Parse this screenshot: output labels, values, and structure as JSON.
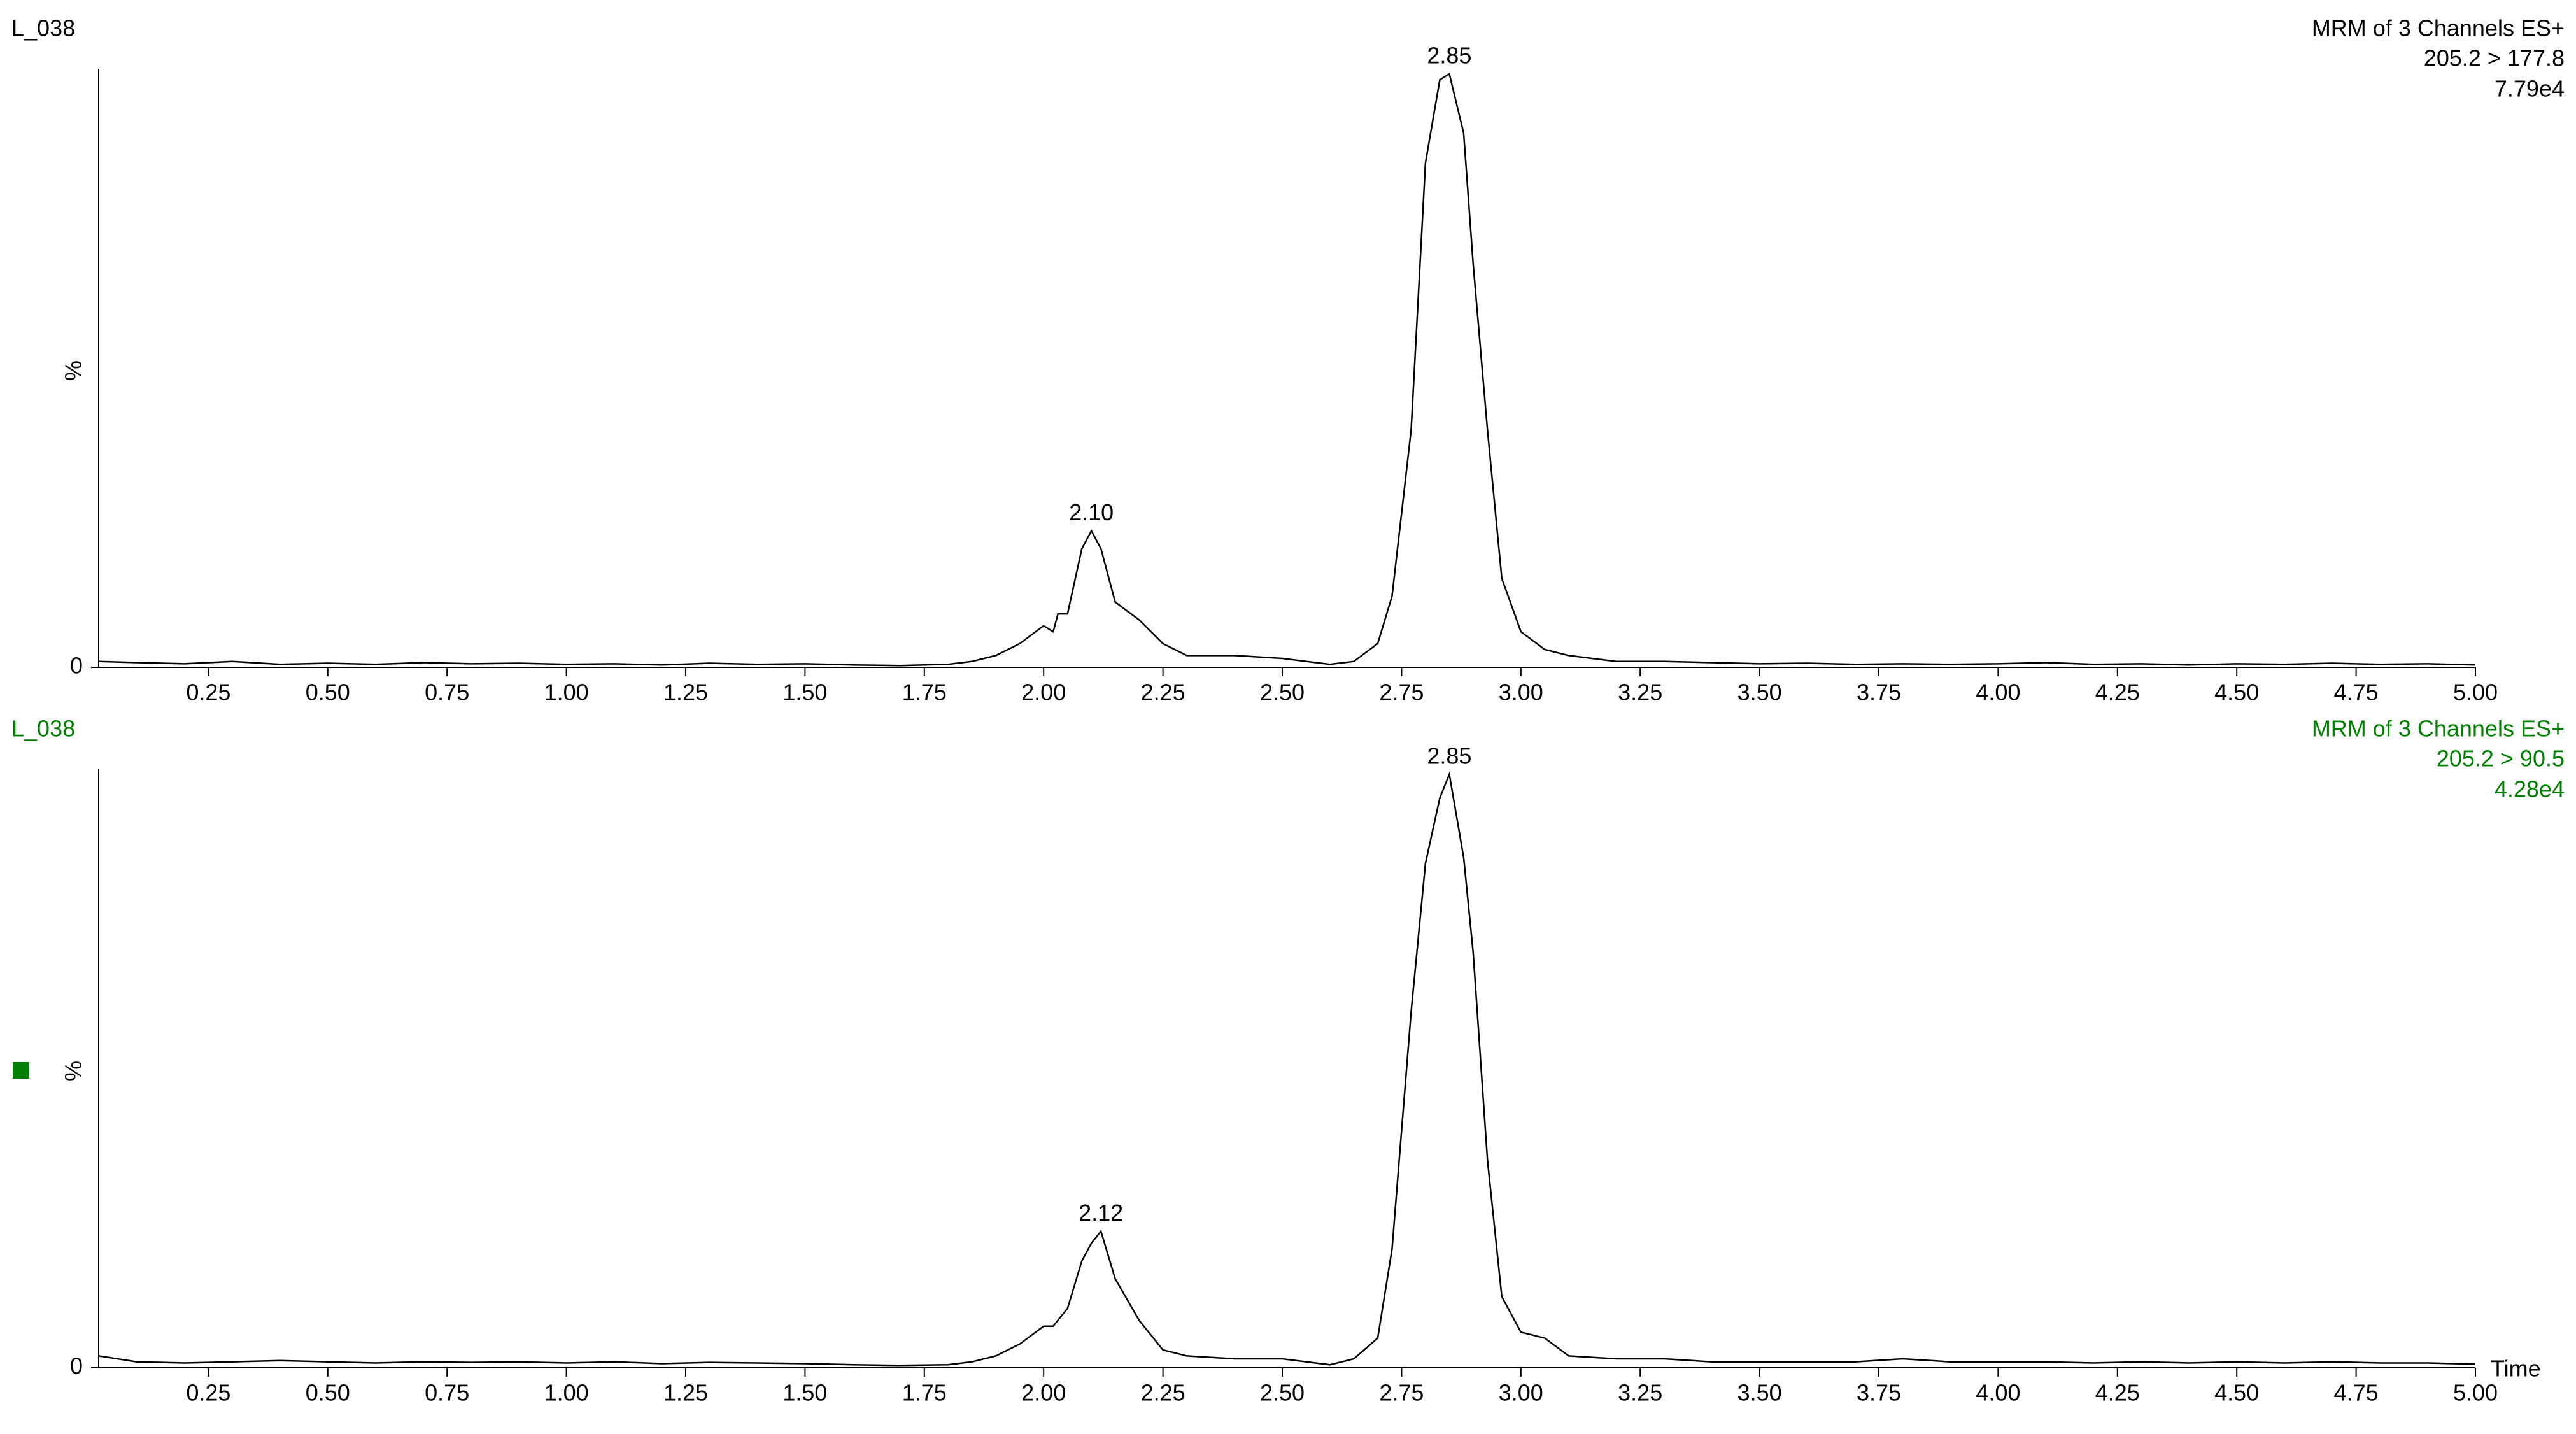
{
  "chart_data": [
    {
      "type": "line",
      "sample": "L_038",
      "title": "MRM of 3 Channels ES+",
      "subtitle": "205.2 > 177.8",
      "intensity": "7.79e4",
      "ylabel": "%",
      "text_color": "#000000",
      "line_color": "#000000",
      "xlim": [
        0.02,
        5.0
      ],
      "ylim": [
        0,
        100
      ],
      "yticks": [
        0
      ],
      "xticks": [
        0.25,
        {
          "value": 0.5,
          "label": "0.50"
        },
        0.75,
        {
          "value": 1,
          "label": "1.00"
        },
        1.25,
        {
          "value": 1.5,
          "label": "1.50"
        },
        1.75,
        {
          "value": 2,
          "label": "2.00"
        },
        2.25,
        {
          "value": 2.5,
          "label": "2.50"
        },
        2.75,
        {
          "value": 3,
          "label": "3.00"
        },
        3.25,
        {
          "value": 3.5,
          "label": "3.50"
        },
        3.75,
        {
          "value": 4,
          "label": "4.00"
        },
        4.25,
        {
          "value": 4.5,
          "label": "4.50"
        },
        4.75,
        {
          "value": 5,
          "label": "5.00"
        }
      ],
      "x": [
        0.02,
        0.1,
        0.2,
        0.3,
        0.4,
        0.5,
        0.6,
        0.7,
        0.8,
        0.9,
        1.0,
        1.1,
        1.2,
        1.3,
        1.4,
        1.5,
        1.6,
        1.7,
        1.8,
        1.85,
        1.9,
        1.95,
        2.0,
        2.02,
        2.03,
        2.05,
        2.08,
        2.1,
        2.12,
        2.15,
        2.2,
        2.25,
        2.3,
        2.4,
        2.5,
        2.6,
        2.65,
        2.7,
        2.73,
        2.77,
        2.8,
        2.83,
        2.85,
        2.88,
        2.9,
        2.93,
        2.96,
        3.0,
        3.05,
        3.1,
        3.2,
        3.3,
        3.4,
        3.5,
        3.6,
        3.7,
        3.8,
        3.9,
        4.0,
        4.1,
        4.2,
        4.3,
        4.4,
        4.5,
        4.6,
        4.7,
        4.8,
        4.9,
        5.0
      ],
      "values": [
        1,
        0.8,
        0.6,
        1,
        0.5,
        0.7,
        0.5,
        0.8,
        0.6,
        0.7,
        0.5,
        0.6,
        0.4,
        0.7,
        0.5,
        0.6,
        0.4,
        0.3,
        0.5,
        1,
        2,
        4,
        7,
        6,
        9,
        9,
        20,
        23,
        20,
        11,
        8,
        4,
        2,
        2,
        1.5,
        0.5,
        1,
        4,
        12,
        40,
        85,
        99,
        100,
        90,
        68,
        40,
        15,
        6,
        3,
        2,
        1,
        1,
        0.8,
        0.6,
        0.7,
        0.5,
        0.6,
        0.5,
        0.6,
        0.8,
        0.5,
        0.6,
        0.4,
        0.6,
        0.5,
        0.7,
        0.5,
        0.6,
        0.4
      ],
      "peaks": [
        {
          "x": 2.1,
          "y": 23,
          "label": "2.10"
        },
        {
          "x": 2.85,
          "y": 100,
          "label": "2.85"
        }
      ]
    },
    {
      "type": "line",
      "sample": "L_038",
      "title": "MRM of 3 Channels ES+",
      "subtitle": "205.2 > 90.5",
      "intensity": "4.28e4",
      "ylabel": "%",
      "xlabel": "Time",
      "text_color": "#008000",
      "line_color": "#000000",
      "xlim": [
        0.02,
        5.0
      ],
      "ylim": [
        0,
        100
      ],
      "yticks": [
        0
      ],
      "xticks": [
        0.25,
        {
          "value": 0.5,
          "label": "0.50"
        },
        0.75,
        {
          "value": 1,
          "label": "1.00"
        },
        1.25,
        {
          "value": 1.5,
          "label": "1.50"
        },
        1.75,
        {
          "value": 2,
          "label": "2.00"
        },
        2.25,
        {
          "value": 2.5,
          "label": "2.50"
        },
        2.75,
        {
          "value": 3,
          "label": "3.00"
        },
        3.25,
        {
          "value": 3.5,
          "label": "3.50"
        },
        3.75,
        {
          "value": 4,
          "label": "4.00"
        },
        4.25,
        {
          "value": 4.5,
          "label": "4.50"
        },
        4.75,
        {
          "value": 5,
          "label": "5.00"
        }
      ],
      "x": [
        0.02,
        0.1,
        0.2,
        0.3,
        0.4,
        0.5,
        0.6,
        0.7,
        0.8,
        0.9,
        1.0,
        1.1,
        1.2,
        1.3,
        1.4,
        1.5,
        1.6,
        1.7,
        1.8,
        1.85,
        1.9,
        1.95,
        2.0,
        2.02,
        2.03,
        2.05,
        2.08,
        2.1,
        2.12,
        2.15,
        2.2,
        2.25,
        2.3,
        2.4,
        2.5,
        2.6,
        2.65,
        2.7,
        2.73,
        2.77,
        2.8,
        2.83,
        2.85,
        2.88,
        2.9,
        2.93,
        2.96,
        3.0,
        3.05,
        3.1,
        3.2,
        3.3,
        3.4,
        3.5,
        3.6,
        3.7,
        3.8,
        3.9,
        4.0,
        4.1,
        4.2,
        4.3,
        4.4,
        4.5,
        4.6,
        4.7,
        4.8,
        4.9,
        5.0
      ],
      "values": [
        2,
        1,
        0.8,
        1,
        1.2,
        1,
        0.8,
        1,
        0.9,
        1,
        0.8,
        1,
        0.7,
        0.9,
        0.8,
        0.7,
        0.5,
        0.4,
        0.5,
        1,
        2,
        4,
        7,
        7,
        8,
        10,
        18,
        21,
        23,
        15,
        8,
        3,
        2,
        1.5,
        1.5,
        0.5,
        1.5,
        5,
        20,
        60,
        85,
        96,
        100,
        86,
        70,
        35,
        12,
        6,
        5,
        2,
        1.5,
        1.5,
        1,
        1,
        1,
        1,
        1.5,
        1,
        1,
        1,
        0.8,
        1,
        0.8,
        1,
        0.8,
        1,
        0.8,
        0.8,
        0.6
      ],
      "peaks": [
        {
          "x": 2.12,
          "y": 23,
          "label": "2.12"
        },
        {
          "x": 2.85,
          "y": 100,
          "label": "2.85"
        }
      ]
    }
  ]
}
